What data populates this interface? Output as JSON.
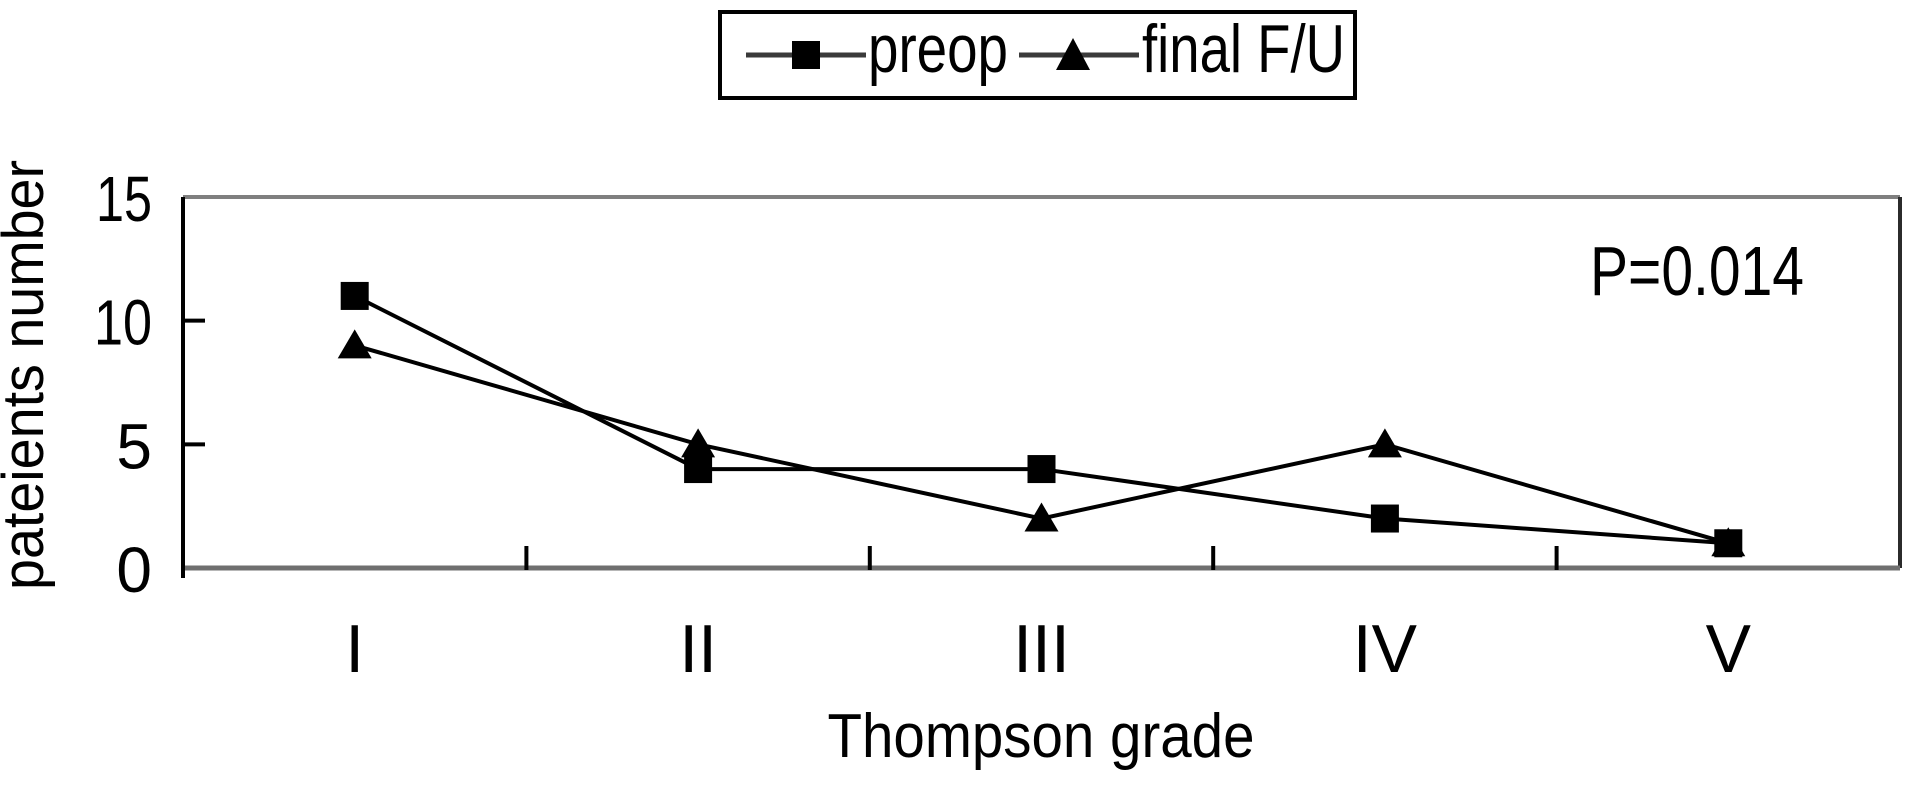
{
  "chart_data": {
    "type": "line",
    "title": "",
    "categories": [
      "I",
      "II",
      "III",
      "IV",
      "V"
    ],
    "series": [
      {
        "name": "preop",
        "marker": "square",
        "color": "#000000",
        "values": [
          11,
          4,
          4,
          2,
          1
        ]
      },
      {
        "name": "final F/U",
        "marker": "triangle",
        "color": "#000000",
        "values": [
          9,
          5,
          2,
          5,
          1
        ]
      }
    ],
    "xlabel": "Thompson grade",
    "ylabel": "pateients number",
    "ylim": [
      0,
      15
    ],
    "yticks": [
      0,
      5,
      10,
      15
    ],
    "annotation": "P=0.014",
    "legend_position": "top-center",
    "grid": false,
    "background": "#ffffff",
    "axis_color": "#000000"
  }
}
